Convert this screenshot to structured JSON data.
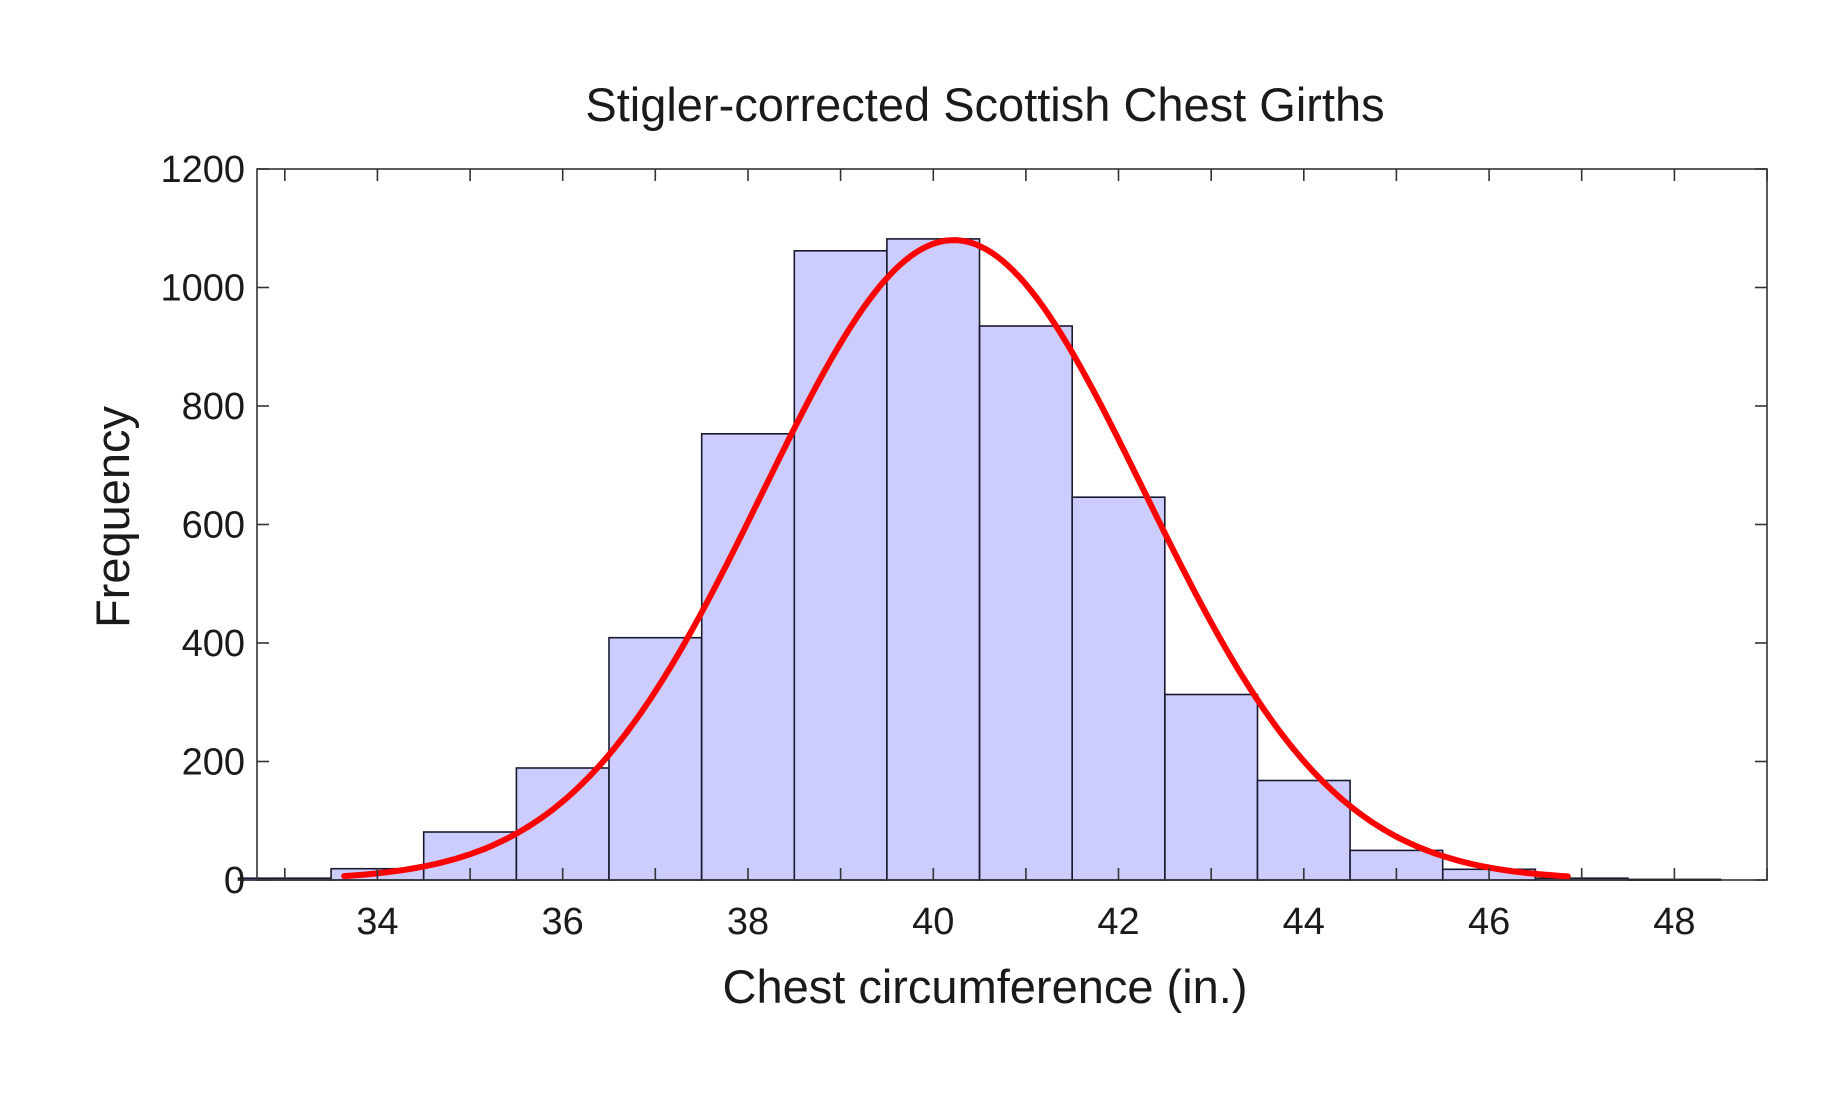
{
  "chart_data": {
    "type": "bar",
    "title": "Stigler-corrected Scottish Chest Girths",
    "xlabel": "Chest circumference (in.)",
    "ylabel": "Frequency",
    "xlim": [
      32.7,
      49.0
    ],
    "ylim": [
      0,
      1200
    ],
    "xticks": [
      34,
      36,
      38,
      40,
      42,
      44,
      46,
      48
    ],
    "yticks": [
      0,
      200,
      400,
      600,
      800,
      1000,
      1200
    ],
    "grid": false,
    "legend": "none",
    "bin_edges": [
      32.5,
      33.5,
      34.5,
      35.5,
      36.5,
      37.5,
      38.5,
      39.5,
      40.5,
      41.5,
      42.5,
      43.5,
      44.5,
      45.5,
      46.5,
      47.5,
      48.5
    ],
    "values": [
      3,
      19,
      81,
      189,
      409,
      753,
      1062,
      1082,
      935,
      646,
      313,
      168,
      50,
      18,
      3,
      1
    ],
    "fit_curve": {
      "type": "normal",
      "mean": 40.22,
      "peak": 1080,
      "sd": 2.06,
      "x_range": [
        33.64,
        46.85
      ]
    },
    "colors": {
      "bar_fill": "#ccccff",
      "bar_edge": "#1a1a2e",
      "curve": "#ff0000"
    }
  }
}
